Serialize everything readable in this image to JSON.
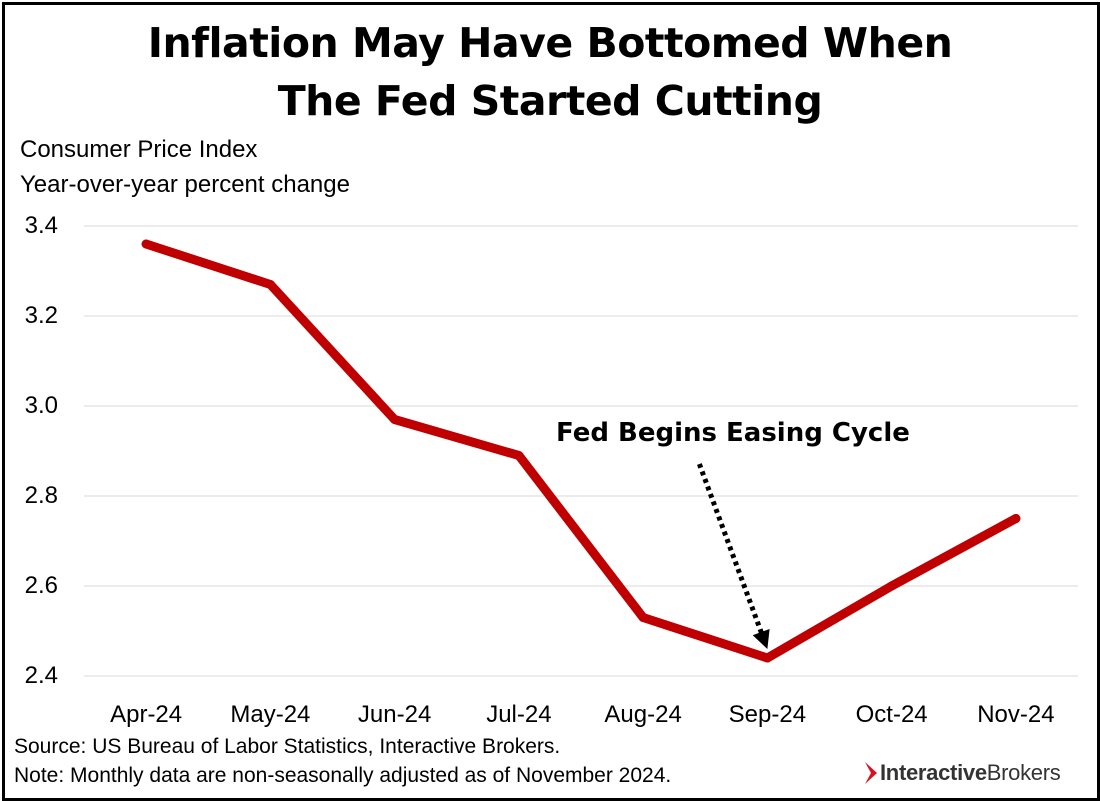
{
  "header": {
    "title_line1": "Inflation May Have Bottomed When",
    "title_line2": "The Fed Started Cutting",
    "subtitle_line1": "Consumer Price Index",
    "subtitle_line2": "Year-over-year percent change"
  },
  "chart_data": {
    "type": "line",
    "title": "Inflation May Have Bottomed When The Fed Started Cutting",
    "xlabel": "",
    "ylabel": "Consumer Price Index Year-over-year percent change",
    "categories": [
      "Apr-24",
      "May-24",
      "Jun-24",
      "Jul-24",
      "Aug-24",
      "Sep-24",
      "Oct-24",
      "Nov-24"
    ],
    "series": [
      {
        "name": "CPI YoY % change",
        "values": [
          3.36,
          3.27,
          2.97,
          2.89,
          2.53,
          2.44,
          2.6,
          2.75
        ],
        "color": "#c00000"
      }
    ],
    "ylim": [
      2.4,
      3.4
    ],
    "yticks": [
      "3.4",
      "3.2",
      "3.0",
      "2.8",
      "2.6",
      "2.4"
    ],
    "grid": true,
    "annotation": {
      "text": "Fed Begins Easing Cycle",
      "category": "Sep-24"
    }
  },
  "footer": {
    "source": "Source: US Bureau of Labor Statistics, Interactive Brokers.",
    "note": "Note: Monthly data are non-seasonally adjusted as of November 2024."
  },
  "brand": {
    "logo_bold": "Interactive",
    "logo_rest": "Brokers",
    "logo_color": "#d81222"
  }
}
